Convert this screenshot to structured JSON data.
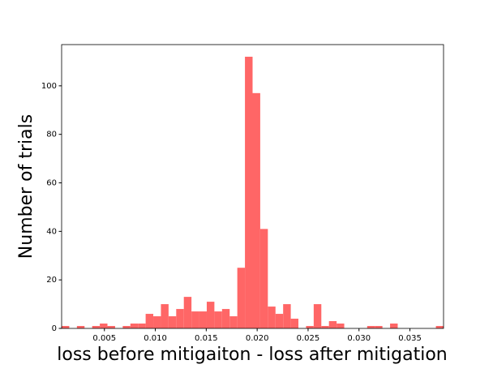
{
  "chart_data": {
    "type": "histogram",
    "xlabel": "loss before mitigaiton - loss after mitigation",
    "ylabel": "Number of trials",
    "color": "#ff6666",
    "bins": [
      0.0008,
      0.00155,
      0.0023,
      0.00305,
      0.0038,
      0.00455,
      0.0053,
      0.00605,
      0.0068,
      0.00755,
      0.0083,
      0.00905,
      0.0098,
      0.01055,
      0.0113,
      0.01205,
      0.0128,
      0.01355,
      0.0143,
      0.01505,
      0.0158,
      0.01655,
      0.0173,
      0.01805,
      0.0188,
      0.01955,
      0.0203,
      0.02105,
      0.0218,
      0.02255,
      0.0233,
      0.02405,
      0.0248,
      0.02555,
      0.0263,
      0.02705,
      0.0278,
      0.02855,
      0.0293,
      0.03005,
      0.0308,
      0.03155,
      0.0323,
      0.03305,
      0.0338,
      0.03455,
      0.0353,
      0.03605,
      0.0368,
      0.03755,
      0.0383
    ],
    "values": [
      1,
      0,
      1,
      0,
      1,
      2,
      1,
      0,
      1,
      2,
      2,
      6,
      5,
      10,
      5,
      8,
      13,
      7,
      7,
      11,
      7,
      8,
      5,
      25,
      112,
      97,
      41,
      9,
      6,
      10,
      4,
      0,
      1,
      10,
      1,
      3,
      2,
      0,
      0,
      0,
      1,
      1,
      0,
      2,
      0,
      0,
      0,
      0,
      0,
      1
    ],
    "xlim": [
      0.0008,
      0.0383
    ],
    "ylim": [
      0,
      117
    ],
    "xticks": [
      0.005,
      {
        "value": 0.01,
        "label": "0.010"
      },
      0.015,
      {
        "value": 0.02,
        "label": "0.020"
      },
      0.025,
      {
        "value": 0.03,
        "label": "0.030"
      },
      0.035
    ],
    "yticks": [
      0,
      20,
      40,
      60,
      80,
      100
    ]
  }
}
